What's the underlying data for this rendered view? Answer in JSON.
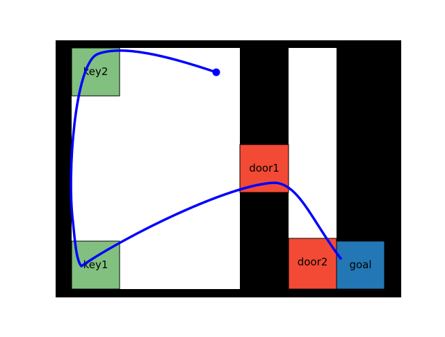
{
  "colors": {
    "background": "#ffffff",
    "wall": "#000000",
    "free_space": "#ffffff",
    "key": "#81c07f",
    "door": "#f34a35",
    "goal": "#2277b4",
    "path": "#0000ff",
    "outline": "#000000"
  },
  "labels": {
    "key2": "key2",
    "key1": "key1",
    "door1": "door1",
    "door2": "door2",
    "goal": "goal"
  },
  "path": {
    "has_end_marker": true
  }
}
